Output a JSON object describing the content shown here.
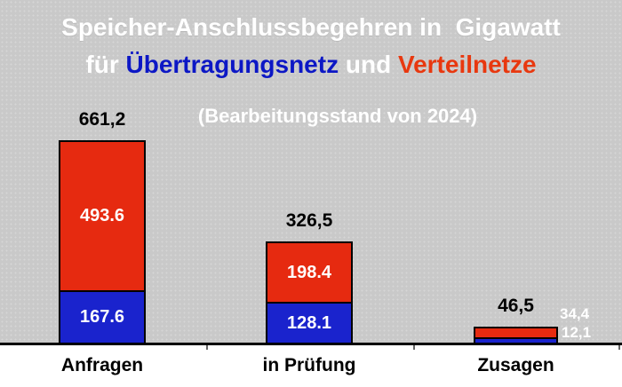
{
  "title": {
    "line1": "Speicher-Anschlussbegehren in  Gigawatt",
    "line2_fuer": "für ",
    "line2_uebertragungsnetz": "Übertragungsnetz",
    "line2_und": " und ",
    "line2_verteilnetze": "Verteilnetze",
    "subtitle": "(Bearbeitungsstand von 2024)"
  },
  "colors": {
    "background": "#c9c9c9",
    "bar_red": "#e62a10",
    "bar_blue": "#1a23cd",
    "title_blue": "#0c17c5",
    "title_red": "#e8380f",
    "axis": "#000000"
  },
  "bars": [
    {
      "category": "Anfragen",
      "total_label": "661,2",
      "red_label": "493.6",
      "blue_label": "167.6"
    },
    {
      "category": "in Prüfung",
      "total_label": "326,5",
      "red_label": "198.4",
      "blue_label": "128.1"
    },
    {
      "category": "Zusagen",
      "total_label": "46,5",
      "red_label": "34,4",
      "blue_label": "12,1"
    }
  ],
  "chart_data": {
    "type": "bar",
    "stacked": true,
    "title": "Speicher-Anschlussbegehren in Gigawatt für Übertragungsnetz und Verteilnetze",
    "subtitle": "(Bearbeitungsstand von 2024)",
    "unit": "Gigawatt",
    "categories": [
      "Anfragen",
      "in Prüfung",
      "Zusagen"
    ],
    "series": [
      {
        "name": "Verteilnetze",
        "color": "#e62a10",
        "values": [
          493.6,
          198.4,
          34.4
        ]
      },
      {
        "name": "Übertragungsnetz",
        "color": "#1a23cd",
        "values": [
          167.6,
          128.1,
          12.1
        ]
      }
    ],
    "totals": [
      661.2,
      326.5,
      46.5
    ],
    "ylim": [
      0,
      700
    ],
    "grid": false,
    "legend": "in title (colored words)"
  }
}
